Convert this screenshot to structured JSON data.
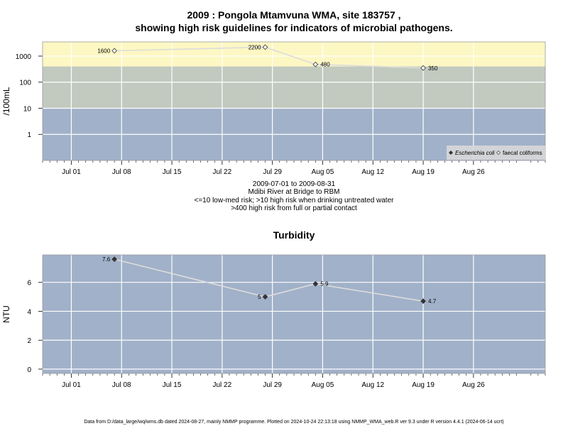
{
  "figure": {
    "title_line1": "2009 : Pongola Mtamvuna WMA, site 183757 ,",
    "title_line2": "showing high risk guidelines for indicators of microbial pathogens.",
    "caption_lines": [
      "2009-07-01 to 2009-08-31",
      "Mdibi River at Bridge to RBM",
      "<=10 low-med risk; >10 high risk when drinking untreated water",
      ">400 high risk from full or partial contact"
    ],
    "footer": "Data from D:/data_large/wq/wms.db dated 2024-08-27, mainly NMMP programme. Plotted on 2024-10-24 22:13:18 using NMMP_WMA_web.R ver 9.3 under R version 4.4.1 (2024-06-14 ucrt)"
  },
  "colors": {
    "low_band": "#a1b1c9",
    "mid_band": "#c2cac0",
    "high_band": "#fdf7c3",
    "grid": "#ffffff",
    "line": "#dcdcdc",
    "point_fill_ecoli": "#333333",
    "frame": "#999999"
  },
  "chart_data": [
    {
      "type": "line",
      "id": "microbial",
      "title": "",
      "ylabel": "/100mL",
      "xlabel": "",
      "y_scale": "log10",
      "ylim": [
        0.1,
        3500
      ],
      "y_ticks": [
        1,
        10,
        100,
        1000
      ],
      "y_tick_labels": [
        "1",
        "10",
        "100",
        "1000"
      ],
      "x_range": [
        "2009-06-27",
        "2009-09-05"
      ],
      "x_ticks": [
        "2009-07-01",
        "2009-07-08",
        "2009-07-15",
        "2009-07-22",
        "2009-07-29",
        "2009-08-05",
        "2009-08-12",
        "2009-08-19",
        "2009-08-26"
      ],
      "x_tick_labels": [
        "Jul 01",
        "Jul 08",
        "Jul 15",
        "Jul 22",
        "Jul 29",
        "Aug 05",
        "Aug 12",
        "Aug 19",
        "Aug 26"
      ],
      "grid": true,
      "bands": [
        {
          "from": 0.1,
          "to": 10,
          "color": "#a1b1c9"
        },
        {
          "from": 10,
          "to": 400,
          "color": "#c2cac0"
        },
        {
          "from": 400,
          "to": 3500,
          "color": "#fdf7c3"
        }
      ],
      "legend_position": "bottom-right",
      "series": [
        {
          "name": "Escherichia coli",
          "marker": "filled-diamond",
          "x": [],
          "y": []
        },
        {
          "name": "faecal coliforms",
          "marker": "open-diamond",
          "x": [
            "2009-07-07",
            "2009-07-28",
            "2009-08-04",
            "2009-08-19"
          ],
          "y": [
            1600,
            2200,
            480,
            350
          ],
          "labels": [
            "1600",
            "2200",
            "480",
            "350"
          ]
        }
      ]
    },
    {
      "type": "line",
      "id": "turbidity",
      "title": "Turbidity",
      "ylabel": "NTU",
      "xlabel": "",
      "y_scale": "linear",
      "ylim": [
        -0.3,
        7.9
      ],
      "y_ticks": [
        0,
        2,
        4,
        6
      ],
      "y_tick_labels": [
        "0",
        "2",
        "4",
        "6"
      ],
      "x_range": [
        "2009-06-27",
        "2009-09-05"
      ],
      "x_ticks": [
        "2009-07-01",
        "2009-07-08",
        "2009-07-15",
        "2009-07-22",
        "2009-07-29",
        "2009-08-05",
        "2009-08-12",
        "2009-08-19",
        "2009-08-26"
      ],
      "x_tick_labels": [
        "Jul 01",
        "Jul 08",
        "Jul 15",
        "Jul 22",
        "Jul 29",
        "Aug 05",
        "Aug 12",
        "Aug 19",
        "Aug 26"
      ],
      "grid": true,
      "bands": [],
      "series": [
        {
          "name": "",
          "marker": "filled-diamond",
          "x": [
            "2009-07-07",
            "2009-07-28",
            "2009-08-04",
            "2009-08-19"
          ],
          "y": [
            7.6,
            5,
            5.9,
            4.7
          ],
          "labels": [
            "7.6",
            "5",
            "5.9",
            "4.7"
          ]
        }
      ]
    }
  ]
}
